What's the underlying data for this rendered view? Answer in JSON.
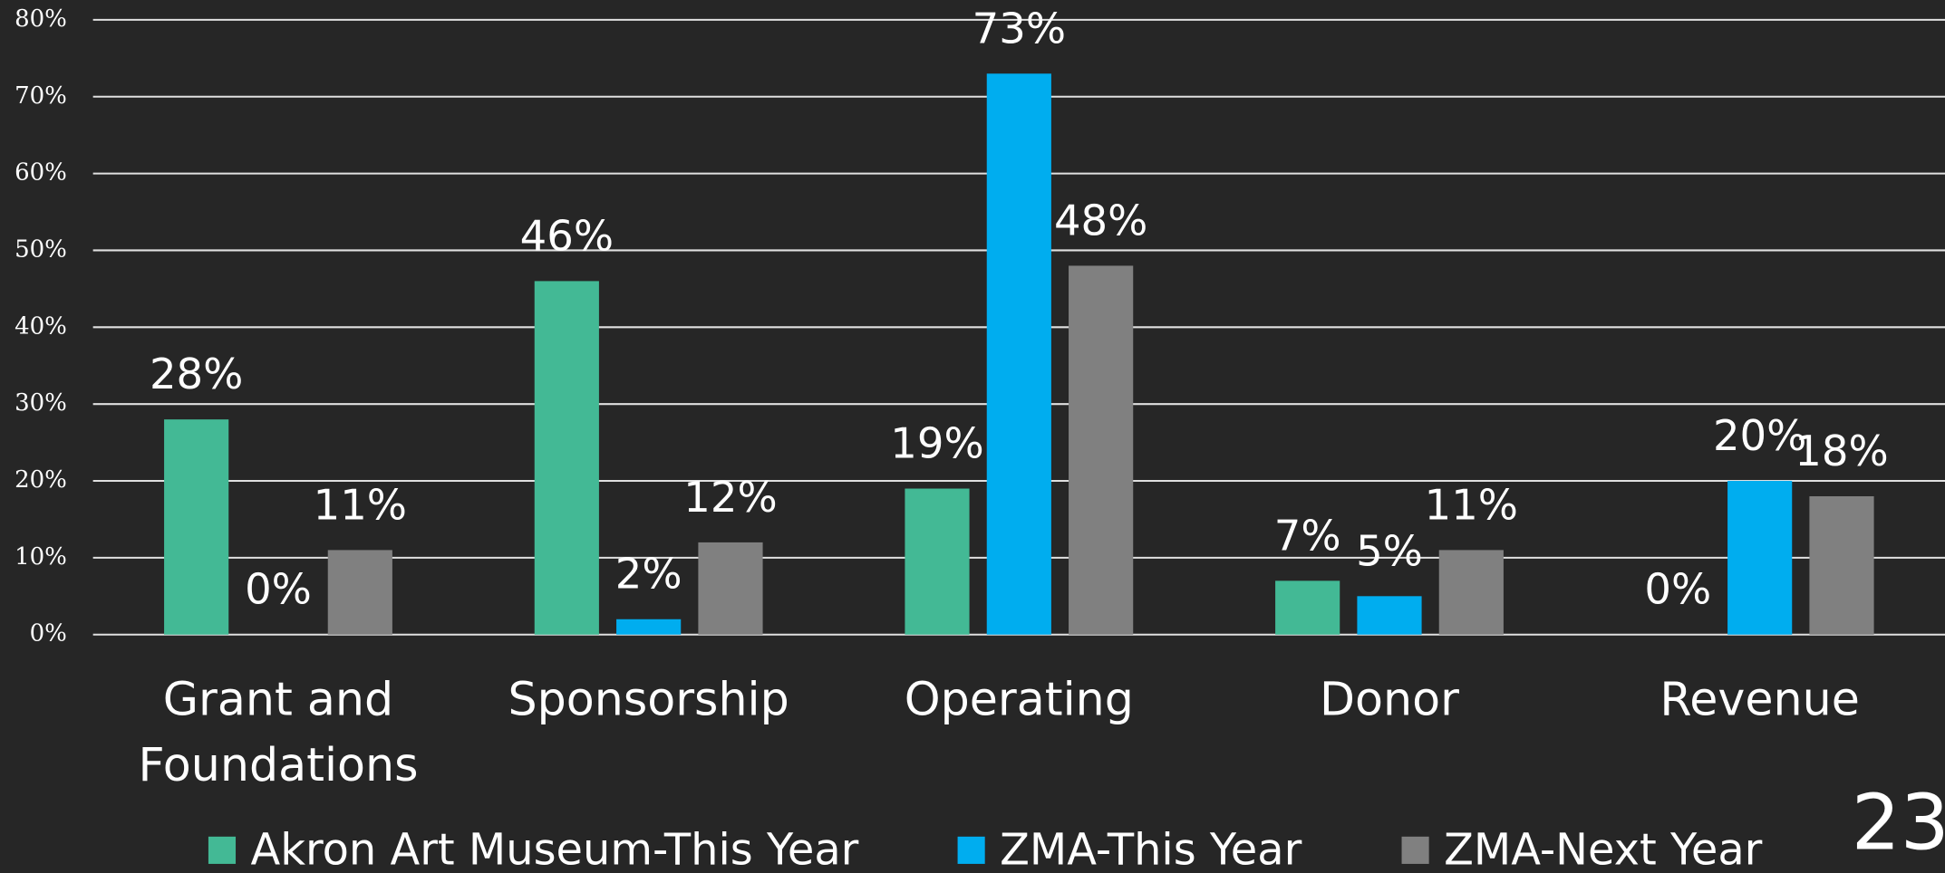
{
  "chart_data": {
    "type": "bar",
    "categories": [
      "Grant and Foundations",
      "Sponsorship",
      "Operating",
      "Donor",
      "Revenue"
    ],
    "series": [
      {
        "name": "Akron Art Museum-This Year",
        "color": "#43b995",
        "values": [
          28,
          46,
          19,
          7,
          0
        ],
        "value_labels": [
          "28%",
          "46%",
          "19%",
          "7%",
          "0%"
        ]
      },
      {
        "name": "ZMA-This Year",
        "color": "#00adef",
        "values": [
          0,
          2,
          73,
          5,
          20
        ],
        "value_labels": [
          "0%",
          "2%",
          "73%",
          "5%",
          "20%"
        ]
      },
      {
        "name": "ZMA-Next Year",
        "color": "#808080",
        "values": [
          11,
          12,
          48,
          11,
          18
        ],
        "value_labels": [
          "11%",
          "12%",
          "48%",
          "11%",
          "18%"
        ]
      }
    ],
    "ylim": [
      0,
      80
    ],
    "yticks": [
      {
        "value": 0,
        "label": "0%"
      },
      {
        "value": 10,
        "label": "10%"
      },
      {
        "value": 20,
        "label": "20%"
      },
      {
        "value": 30,
        "label": "30%"
      },
      {
        "value": 40,
        "label": "40%"
      },
      {
        "value": 50,
        "label": "50%"
      },
      {
        "value": 60,
        "label": "60%"
      },
      {
        "value": 70,
        "label": "70%"
      },
      {
        "value": 80,
        "label": "80%"
      }
    ],
    "grid": true,
    "legend": "bottom"
  },
  "page_number": "23"
}
